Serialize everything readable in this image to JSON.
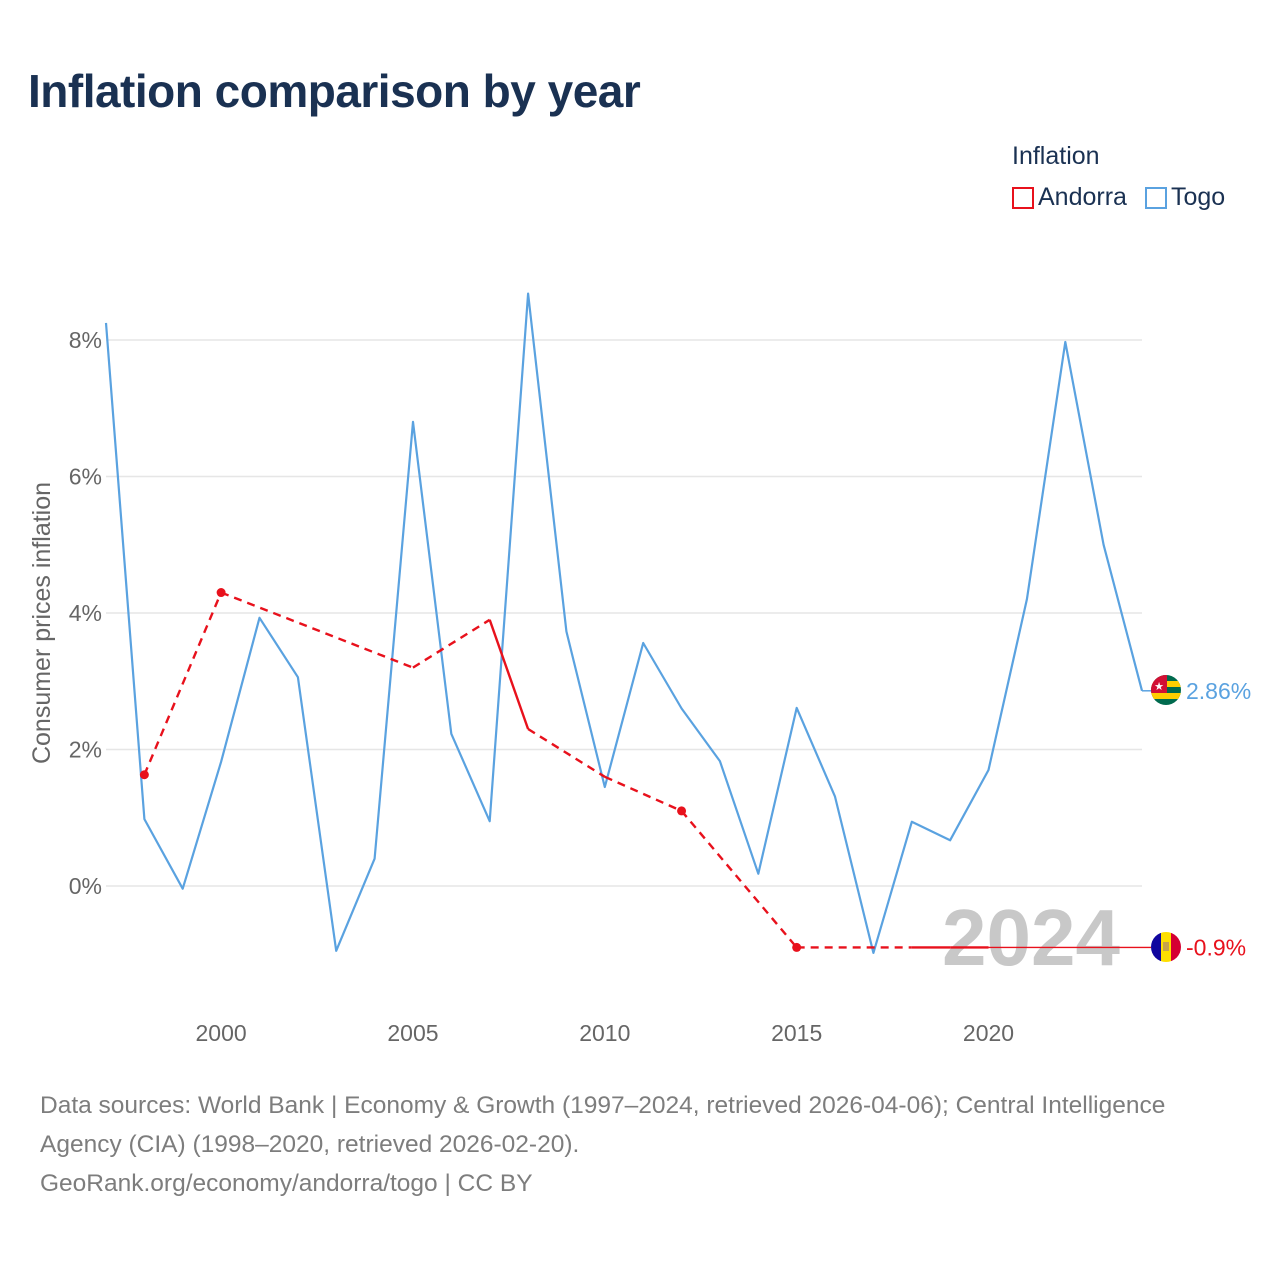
{
  "title": "Inflation comparison by year",
  "legend": {
    "title": "Inflation",
    "items": [
      {
        "label": "Andorra",
        "color": "#e8111c"
      },
      {
        "label": "Togo",
        "color": "#5aa2e0"
      }
    ]
  },
  "chart_data": {
    "type": "line",
    "title": "Inflation comparison by year",
    "xlabel": "",
    "ylabel": "Consumer prices inflation",
    "xlim": [
      1997,
      2024
    ],
    "ylim": [
      -1.6,
      8.7
    ],
    "x_ticks": [
      2000,
      2005,
      2010,
      2015,
      2020
    ],
    "y_ticks": [
      0,
      2,
      4,
      6,
      8
    ],
    "y_tick_labels": [
      "0%",
      "2%",
      "4%",
      "6%",
      "8%"
    ],
    "grid": true,
    "year_watermark": "2024",
    "series": [
      {
        "name": "Andorra",
        "color": "#e8111c",
        "x": [
          1998,
          2000,
          2005,
          2007,
          2008,
          2010,
          2012,
          2015,
          2018,
          2019,
          2020
        ],
        "values": [
          1.63,
          4.3,
          3.2,
          3.9,
          2.3,
          1.6,
          1.1,
          -0.9,
          -0.9,
          -0.9,
          -0.9
        ],
        "solid_segments": [
          [
            2007,
            2008
          ],
          [
            2018,
            2020
          ]
        ],
        "markers": [
          1998,
          2000,
          2012,
          2015
        ],
        "end_label": "-0.9%",
        "end_value": -0.9
      },
      {
        "name": "Togo",
        "color": "#5aa2e0",
        "x": [
          1997,
          1998,
          1999,
          2000,
          2001,
          2002,
          2003,
          2004,
          2005,
          2006,
          2007,
          2008,
          2009,
          2010,
          2011,
          2012,
          2013,
          2014,
          2015,
          2016,
          2017,
          2018,
          2019,
          2020,
          2021,
          2022,
          2023,
          2024
        ],
        "values": [
          8.25,
          0.98,
          -0.04,
          1.82,
          3.93,
          3.06,
          -0.95,
          0.4,
          6.8,
          2.23,
          0.95,
          8.68,
          3.73,
          1.45,
          3.56,
          2.6,
          1.83,
          0.18,
          2.61,
          1.31,
          -0.98,
          0.94,
          0.67,
          1.7,
          4.2,
          7.97,
          5.0,
          2.86
        ],
        "end_label": "2.86%",
        "end_value": 2.86
      }
    ]
  },
  "footer": {
    "sources_line1": "Data sources: World Bank | Economy & Growth (1997–2024, retrieved 2026-04-06); Central Intelligence",
    "sources_line2": "Agency (CIA) (1998–2020, retrieved 2026-02-20).",
    "credit": "GeoRank.org/economy/andorra/togo | CC BY"
  },
  "colors": {
    "title": "#1a3152",
    "axis_text": "#666666",
    "grid": "#e6e6e6",
    "watermark": "#c8c8c8",
    "footer": "#7d7d7d"
  }
}
